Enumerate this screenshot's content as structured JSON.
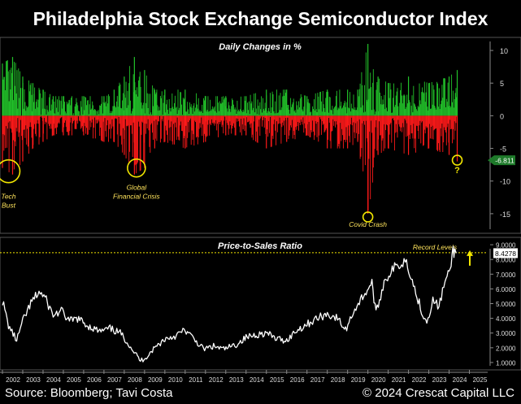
{
  "title": "Philadelphia Stock Exchange Semiconductor Index",
  "footer": {
    "source": "Source: Bloomberg; Tavi Costa",
    "copyright": "© 2024 Crescat Capital LLC"
  },
  "colors": {
    "positive": "#22c22a",
    "negative": "#ff1a1a",
    "highlight": "#f2e600",
    "line": "#ffffff",
    "label_yellow": "#ffe45c"
  },
  "chart_data": [
    {
      "type": "bar",
      "title": "Daily Changes in %",
      "x_range": [
        2002,
        2025.9
      ],
      "ylim": [
        -18,
        12
      ],
      "yticks": [
        10,
        5,
        0,
        -5,
        -10,
        -15
      ],
      "last_value_label": "-6.811",
      "last_value": -6.811,
      "envelope": {
        "x": [
          2002.0,
          2002.5,
          2003.0,
          2003.5,
          2004.0,
          2004.5,
          2005.0,
          2006.0,
          2007.0,
          2007.5,
          2008.0,
          2008.5,
          2009.0,
          2009.5,
          2010.0,
          2011.0,
          2012.0,
          2013.0,
          2014.0,
          2015.0,
          2016.0,
          2017.0,
          2018.0,
          2019.0,
          2019.5,
          2020.0,
          2020.5,
          2021.0,
          2022.0,
          2023.0,
          2024.0,
          2024.4
        ],
        "pos": [
          8,
          9,
          6,
          5,
          4,
          3,
          3,
          3,
          3,
          4,
          6,
          9,
          7,
          4,
          4,
          4,
          3,
          3,
          3,
          4,
          4,
          3,
          4,
          4,
          4,
          11,
          6,
          5,
          6,
          5,
          6,
          7
        ],
        "neg": [
          -8,
          -9,
          -7,
          -5,
          -4,
          -3,
          -3,
          -3,
          -4,
          -4,
          -6,
          -9,
          -8,
          -5,
          -4,
          -5,
          -4,
          -3,
          -3,
          -5,
          -4,
          -3,
          -5,
          -5,
          -4,
          -15,
          -6,
          -5,
          -6,
          -5,
          -6,
          -7
        ]
      },
      "annotations": [
        {
          "text": [
            "Tech",
            "Bust"
          ],
          "x": 2002.3,
          "y": -8.5
        },
        {
          "text": [
            "Global",
            "Financial Crisis"
          ],
          "x": 2008.6,
          "y": -8.0
        },
        {
          "text": [
            "Covid Crash"
          ],
          "x": 2020.0,
          "y": -15.5
        },
        {
          "text": [
            "?"
          ],
          "x": 2024.4,
          "y": -6.8
        }
      ]
    },
    {
      "type": "line",
      "title": "Price-to-Sales Ratio",
      "ylim": [
        0.5,
        9.5
      ],
      "yticks": [
        "9.0000",
        "8.0000",
        "7.0000",
        "6.0000",
        "5.0000",
        "4.0000",
        "3.0000",
        "2.0000",
        "1.0000"
      ],
      "ytick_values": [
        9,
        8,
        7,
        6,
        5,
        4,
        3,
        2,
        1
      ],
      "last_value_label": "8.4278",
      "last_value": 8.4278,
      "record_label": "Record Levels",
      "record_level": 8.9,
      "xticks": [
        "2002",
        "2003",
        "2004",
        "2005",
        "2006",
        "2007",
        "2008",
        "2009",
        "2010",
        "2011",
        "2012",
        "2013",
        "2014",
        "2015",
        "2016",
        "2017",
        "2018",
        "2019",
        "2020",
        "2021",
        "2022",
        "2023",
        "2024",
        "2025"
      ],
      "x": [
        2002.0,
        2002.3,
        2002.7,
        2003.0,
        2003.4,
        2003.8,
        2004.1,
        2004.5,
        2004.9,
        2005.3,
        2005.7,
        2006.2,
        2006.8,
        2007.3,
        2007.8,
        2008.2,
        2008.6,
        2008.8,
        2009.1,
        2009.5,
        2010.0,
        2010.5,
        2011.0,
        2011.5,
        2011.9,
        2012.4,
        2012.9,
        2013.5,
        2014.0,
        2014.5,
        2015.0,
        2015.5,
        2016.0,
        2016.5,
        2017.0,
        2017.5,
        2018.0,
        2018.5,
        2018.9,
        2019.3,
        2019.8,
        2020.2,
        2020.4,
        2020.8,
        2021.2,
        2021.6,
        2021.9,
        2022.3,
        2022.7,
        2022.9,
        2023.2,
        2023.5,
        2023.8,
        2024.0,
        2024.2,
        2024.35
      ],
      "y": [
        5.2,
        3.5,
        2.5,
        3.8,
        5.0,
        5.8,
        5.4,
        4.2,
        4.5,
        3.8,
        4.0,
        3.5,
        3.1,
        3.3,
        3.0,
        2.3,
        1.5,
        1.1,
        1.4,
        2.0,
        2.6,
        2.8,
        3.2,
        2.5,
        1.9,
        2.1,
        1.9,
        2.2,
        2.7,
        2.9,
        3.0,
        2.6,
        2.5,
        3.2,
        3.6,
        4.0,
        4.3,
        4.0,
        3.2,
        4.5,
        5.6,
        6.4,
        4.3,
        6.5,
        7.3,
        7.7,
        8.0,
        6.0,
        4.3,
        3.8,
        5.2,
        4.8,
        6.5,
        7.0,
        8.6,
        8.4278
      ]
    }
  ]
}
